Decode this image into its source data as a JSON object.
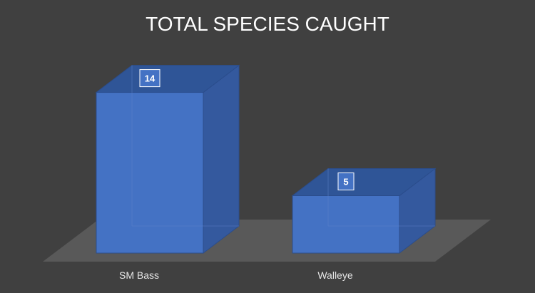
{
  "chart_data": {
    "type": "bar",
    "title": "TOTAL SPECIES CAUGHT",
    "categories": [
      "SM Bass",
      "Walleye"
    ],
    "values": [
      14,
      5
    ],
    "xlabel": "",
    "ylabel": "",
    "grid": false,
    "legend": "none",
    "style": "3d-column"
  },
  "colors": {
    "background": "#404040",
    "floor": "#595959",
    "bar_front": "#4472C4",
    "bar_side": "#34599E",
    "bar_top": "#2F5597",
    "bar_edge": "#2B4D8C",
    "label_box": "#4472C4"
  }
}
